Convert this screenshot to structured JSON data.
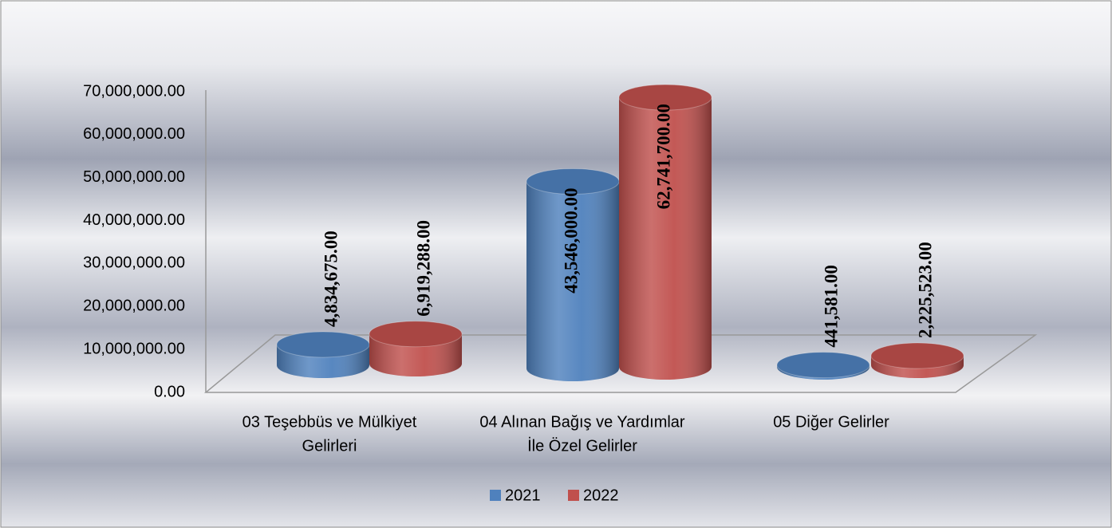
{
  "chart_data": {
    "type": "bar3d",
    "categories": [
      [
        "03 Teşebbüs ve Mülkiyet",
        "Gelirleri"
      ],
      [
        "04 Alınan Bağış ve Yardımlar",
        "İle Özel Gelirler"
      ],
      [
        "05 Diğer Gelirler"
      ]
    ],
    "series": [
      {
        "name": "2021",
        "color": "#4f81bd",
        "values": [
          4834675,
          43546000,
          441581
        ],
        "value_labels": [
          "4,834,675.00",
          "43,546,000.00",
          "441,581.00"
        ]
      },
      {
        "name": "2022",
        "color": "#c0504d",
        "values": [
          6919288,
          62741700,
          2225523
        ],
        "value_labels": [
          "6,919,288.00",
          "62,741,700.00",
          "2,225,523.00"
        ]
      }
    ],
    "ylim": [
      0,
      70000000
    ],
    "yticks": [
      {
        "value": 0,
        "label": "0.00"
      },
      {
        "value": 10000000,
        "label": "10,000,000.00"
      },
      {
        "value": 20000000,
        "label": "20,000,000.00"
      },
      {
        "value": 30000000,
        "label": "30,000,000.00"
      },
      {
        "value": 40000000,
        "label": "40,000,000.00"
      },
      {
        "value": 50000000,
        "label": "50,000,000.00"
      },
      {
        "value": 60000000,
        "label": "60,000,000.00"
      },
      {
        "value": 70000000,
        "label": "70,000,000.00"
      }
    ],
    "legend": "bottom"
  }
}
